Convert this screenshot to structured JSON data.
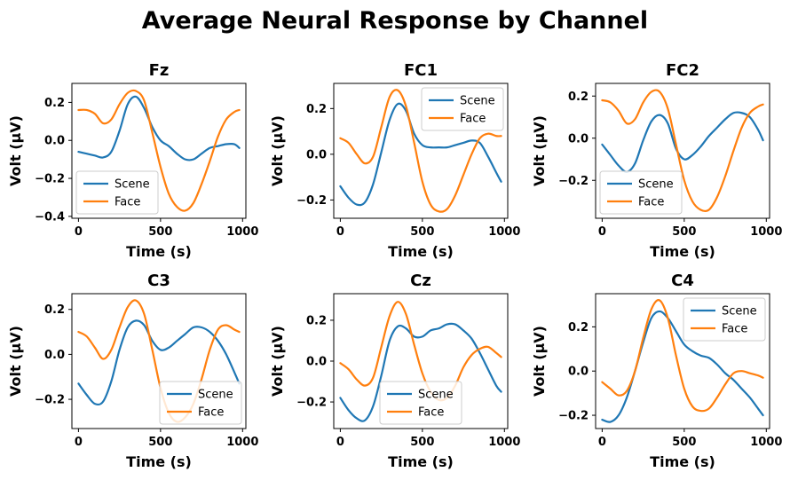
{
  "chart_data": {
    "type": "line",
    "title": "Average Neural Response by Channel",
    "xlabel": "Time (s)",
    "ylabel": "Volt (µV)",
    "colors": {
      "Scene": "#1f77b4",
      "Face": "#ff7f0e"
    },
    "subplots": [
      {
        "channel": "Fz",
        "xlim": [
          -40,
          1020
        ],
        "ylim": [
          -0.41,
          0.3
        ],
        "xticks": [
          0,
          500,
          1000
        ],
        "yticks": [
          -0.4,
          -0.2,
          0.0,
          0.2
        ],
        "ytick_labels": [
          "−0.4",
          "−0.2",
          "0.0",
          "0.2"
        ],
        "legend": "lower-left",
        "x": [
          0,
          50,
          100,
          150,
          200,
          250,
          300,
          350,
          400,
          450,
          500,
          550,
          600,
          650,
          700,
          750,
          800,
          850,
          900,
          950,
          980
        ],
        "series": [
          {
            "name": "Scene",
            "values": [
              -0.06,
              -0.07,
              -0.08,
              -0.09,
              -0.06,
              0.05,
              0.19,
              0.23,
              0.17,
              0.07,
              0.0,
              -0.03,
              -0.07,
              -0.1,
              -0.1,
              -0.07,
              -0.04,
              -0.03,
              -0.02,
              -0.02,
              -0.04
            ]
          },
          {
            "name": "Face",
            "values": [
              0.16,
              0.16,
              0.14,
              0.09,
              0.11,
              0.19,
              0.25,
              0.26,
              0.21,
              0.04,
              -0.14,
              -0.28,
              -0.35,
              -0.37,
              -0.33,
              -0.23,
              -0.11,
              0.02,
              0.11,
              0.15,
              0.16
            ]
          }
        ]
      },
      {
        "channel": "FC1",
        "xlim": [
          -40,
          1020
        ],
        "ylim": [
          -0.28,
          0.31
        ],
        "xticks": [
          0,
          500,
          1000
        ],
        "yticks": [
          -0.2,
          0.0,
          0.2
        ],
        "ytick_labels": [
          "−0.2",
          "0.0",
          "0.2"
        ],
        "legend": "upper-right",
        "x": [
          0,
          50,
          100,
          150,
          200,
          250,
          300,
          350,
          400,
          450,
          500,
          550,
          600,
          650,
          700,
          750,
          800,
          850,
          900,
          950,
          980
        ],
        "series": [
          {
            "name": "Scene",
            "values": [
              -0.14,
              -0.19,
              -0.22,
              -0.21,
              -0.13,
              0.01,
              0.15,
              0.22,
              0.19,
              0.09,
              0.04,
              0.03,
              0.03,
              0.03,
              0.04,
              0.05,
              0.06,
              0.05,
              -0.01,
              -0.08,
              -0.12
            ]
          },
          {
            "name": "Face",
            "values": [
              0.07,
              0.05,
              0.0,
              -0.04,
              -0.01,
              0.12,
              0.25,
              0.28,
              0.21,
              0.05,
              -0.12,
              -0.22,
              -0.25,
              -0.24,
              -0.18,
              -0.09,
              0.0,
              0.07,
              0.09,
              0.08,
              0.08
            ]
          }
        ]
      },
      {
        "channel": "FC2",
        "xlim": [
          -40,
          1020
        ],
        "ylim": [
          -0.38,
          0.26
        ],
        "xticks": [
          0,
          500,
          1000
        ],
        "yticks": [
          -0.2,
          0.0,
          0.2
        ],
        "ytick_labels": [
          "−0.2",
          "0.0",
          "0.2"
        ],
        "legend": "lower-left",
        "x": [
          0,
          50,
          100,
          150,
          200,
          250,
          300,
          350,
          400,
          450,
          500,
          550,
          600,
          650,
          700,
          750,
          800,
          850,
          900,
          950,
          980
        ],
        "series": [
          {
            "name": "Scene",
            "values": [
              -0.03,
              -0.08,
              -0.13,
              -0.16,
              -0.12,
              -0.01,
              0.08,
              0.11,
              0.07,
              -0.05,
              -0.1,
              -0.08,
              -0.04,
              0.01,
              0.05,
              0.09,
              0.12,
              0.12,
              0.1,
              0.04,
              -0.01
            ]
          },
          {
            "name": "Face",
            "values": [
              0.18,
              0.17,
              0.13,
              0.07,
              0.09,
              0.17,
              0.22,
              0.22,
              0.14,
              -0.03,
              -0.2,
              -0.3,
              -0.34,
              -0.34,
              -0.28,
              -0.18,
              -0.06,
              0.05,
              0.12,
              0.15,
              0.16
            ]
          }
        ]
      },
      {
        "channel": "C3",
        "xlim": [
          -40,
          1020
        ],
        "ylim": [
          -0.33,
          0.27
        ],
        "xticks": [
          0,
          500,
          1000
        ],
        "yticks": [
          -0.2,
          0.0,
          0.2
        ],
        "ytick_labels": [
          "−0.2",
          "0.0",
          "0.2"
        ],
        "legend": "lower-right",
        "x": [
          0,
          50,
          100,
          150,
          200,
          250,
          300,
          350,
          400,
          450,
          500,
          550,
          600,
          650,
          700,
          750,
          800,
          850,
          900,
          950,
          980
        ],
        "series": [
          {
            "name": "Scene",
            "values": [
              -0.13,
              -0.18,
              -0.22,
              -0.21,
              -0.12,
              0.02,
              0.12,
              0.15,
              0.13,
              0.06,
              0.02,
              0.03,
              0.06,
              0.09,
              0.12,
              0.12,
              0.1,
              0.06,
              0.0,
              -0.08,
              -0.13
            ]
          },
          {
            "name": "Face",
            "values": [
              0.1,
              0.08,
              0.03,
              -0.02,
              0.02,
              0.12,
              0.21,
              0.24,
              0.18,
              0.02,
              -0.15,
              -0.26,
              -0.3,
              -0.28,
              -0.22,
              -0.11,
              0.02,
              0.11,
              0.13,
              0.11,
              0.1
            ]
          }
        ]
      },
      {
        "channel": "Cz",
        "xlim": [
          -40,
          1020
        ],
        "ylim": [
          -0.33,
          0.33
        ],
        "xticks": [
          0,
          500,
          1000
        ],
        "yticks": [
          -0.2,
          0.0,
          0.2
        ],
        "ytick_labels": [
          "−0.2",
          "0.0",
          "0.2"
        ],
        "legend": "lower-center",
        "x": [
          0,
          50,
          100,
          150,
          200,
          250,
          300,
          350,
          400,
          450,
          500,
          550,
          600,
          650,
          700,
          750,
          800,
          850,
          900,
          950,
          980
        ],
        "series": [
          {
            "name": "Scene",
            "values": [
              -0.18,
              -0.24,
              -0.28,
              -0.29,
              -0.22,
              -0.07,
              0.1,
              0.17,
              0.16,
              0.12,
              0.12,
              0.15,
              0.16,
              0.18,
              0.18,
              0.15,
              0.11,
              0.04,
              -0.04,
              -0.12,
              -0.15
            ]
          },
          {
            "name": "Face",
            "values": [
              -0.01,
              -0.04,
              -0.09,
              -0.12,
              -0.08,
              0.07,
              0.22,
              0.29,
              0.23,
              0.08,
              -0.06,
              -0.15,
              -0.19,
              -0.18,
              -0.12,
              -0.03,
              0.03,
              0.06,
              0.07,
              0.04,
              0.02
            ]
          }
        ]
      },
      {
        "channel": "C4",
        "xlim": [
          -40,
          1020
        ],
        "ylim": [
          -0.26,
          0.35
        ],
        "xticks": [
          0,
          500,
          1000
        ],
        "yticks": [
          -0.2,
          0.0,
          0.2
        ],
        "ytick_labels": [
          "−0.2",
          "0.0",
          "0.2"
        ],
        "legend": "upper-right",
        "x": [
          0,
          50,
          100,
          150,
          200,
          250,
          300,
          350,
          400,
          450,
          500,
          550,
          600,
          650,
          700,
          750,
          800,
          850,
          900,
          950,
          980
        ],
        "series": [
          {
            "name": "Scene",
            "values": [
              -0.22,
              -0.23,
              -0.2,
              -0.12,
              0.0,
              0.13,
              0.24,
              0.27,
              0.24,
              0.18,
              0.12,
              0.09,
              0.07,
              0.06,
              0.03,
              -0.01,
              -0.04,
              -0.08,
              -0.12,
              -0.17,
              -0.2
            ]
          },
          {
            "name": "Face",
            "values": [
              -0.05,
              -0.08,
              -0.11,
              -0.09,
              0.0,
              0.15,
              0.28,
              0.32,
              0.24,
              0.07,
              -0.08,
              -0.16,
              -0.18,
              -0.17,
              -0.12,
              -0.06,
              -0.01,
              0.0,
              -0.01,
              -0.02,
              -0.03
            ]
          }
        ]
      }
    ]
  }
}
